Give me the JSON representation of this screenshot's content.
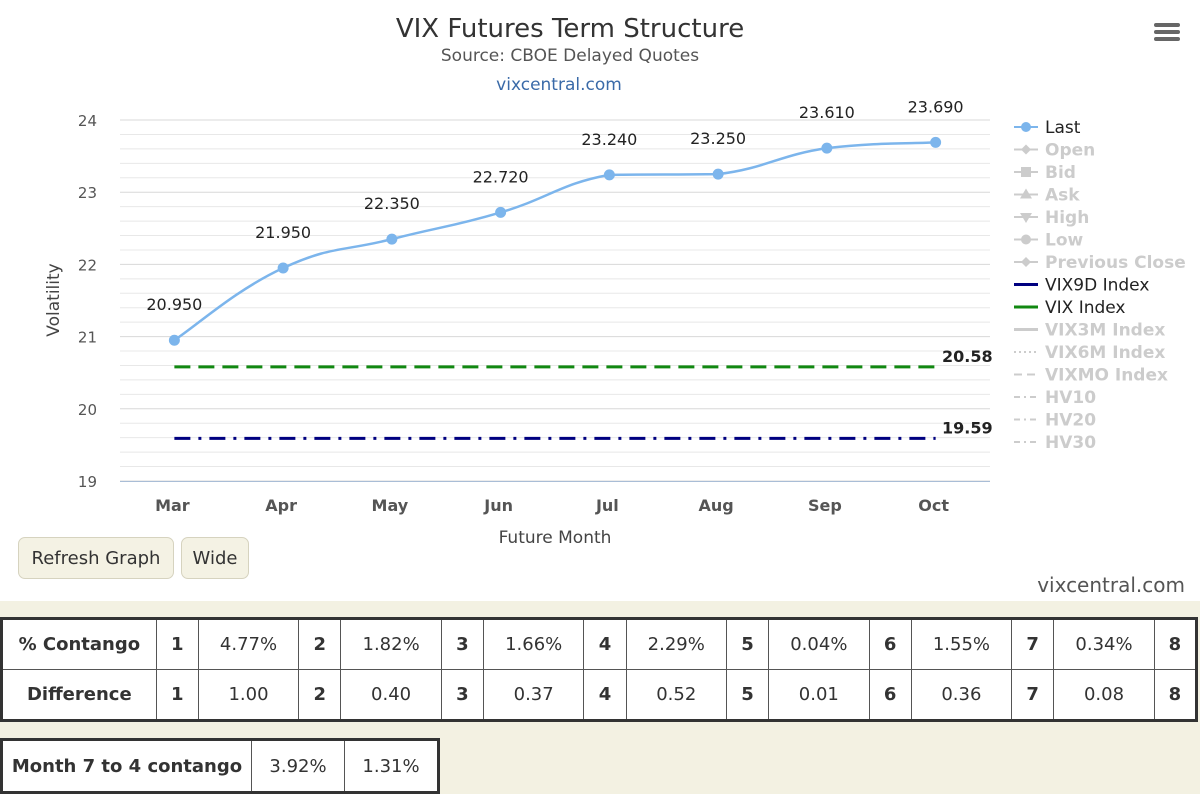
{
  "chart_data": {
    "type": "line",
    "title": "VIX Futures Term Structure",
    "subtitle": "Source: CBOE Delayed Quotes",
    "credit_top": "vixcentral.com",
    "xlabel": "Future Month",
    "ylabel": "Volatility",
    "categories": [
      "Mar",
      "Apr",
      "May",
      "Jun",
      "Jul",
      "Aug",
      "Sep",
      "Oct"
    ],
    "ylim": [
      19,
      24
    ],
    "yticks": [
      19,
      20,
      21,
      22,
      23,
      24
    ],
    "grid": true,
    "legend_position": "right",
    "series": [
      {
        "name": "Last",
        "values": [
          20.95,
          21.95,
          22.35,
          22.72,
          23.24,
          23.25,
          23.61,
          23.69
        ],
        "labels": [
          "20.950",
          "21.950",
          "22.350",
          "22.720",
          "23.240",
          "23.250",
          "23.610",
          "23.690"
        ],
        "color": "#7cb5ec",
        "style": "smooth-markers"
      },
      {
        "name": "VIX Index",
        "value": 20.58,
        "label": "20.58",
        "color": "#118811",
        "style": "dash"
      },
      {
        "name": "VIX9D Index",
        "value": 19.59,
        "label": "19.59",
        "color": "#000080",
        "style": "dashdot"
      }
    ],
    "legend": [
      {
        "name": "Last",
        "active": true,
        "symbol": "circle",
        "color": "#7cb5ec"
      },
      {
        "name": "Open",
        "active": false,
        "symbol": "diamond"
      },
      {
        "name": "Bid",
        "active": false,
        "symbol": "square"
      },
      {
        "name": "Ask",
        "active": false,
        "symbol": "triangle"
      },
      {
        "name": "High",
        "active": false,
        "symbol": "triangle-down"
      },
      {
        "name": "Low",
        "active": false,
        "symbol": "circle"
      },
      {
        "name": "Previous Close",
        "active": false,
        "symbol": "diamond"
      },
      {
        "name": "VIX9D Index",
        "active": true,
        "symbol": "line",
        "color": "#000080"
      },
      {
        "name": "VIX Index",
        "active": true,
        "symbol": "line",
        "color": "#118811"
      },
      {
        "name": "VIX3M Index",
        "active": false,
        "symbol": "line"
      },
      {
        "name": "VIX6M Index",
        "active": false,
        "symbol": "dotted"
      },
      {
        "name": "VIXMO Index",
        "active": false,
        "symbol": "dash"
      },
      {
        "name": "HV10",
        "active": false,
        "symbol": "dashdot"
      },
      {
        "name": "HV20",
        "active": false,
        "symbol": "dashdot"
      },
      {
        "name": "HV30",
        "active": false,
        "symbol": "dashdot"
      }
    ]
  },
  "controls": {
    "refresh_label": "Refresh Graph",
    "wide_label": "Wide",
    "menu_icon": "hamburger-menu-icon"
  },
  "credit_bottom": "vixcentral.com",
  "contango_table": {
    "rows": [
      {
        "label": "% Contango",
        "cells": [
          "1",
          "4.77%",
          "2",
          "1.82%",
          "3",
          "1.66%",
          "4",
          "2.29%",
          "5",
          "0.04%",
          "6",
          "1.55%",
          "7",
          "0.34%",
          "8"
        ]
      },
      {
        "label": "Difference",
        "cells": [
          "1",
          "1.00",
          "2",
          "0.40",
          "3",
          "0.37",
          "4",
          "0.52",
          "5",
          "0.01",
          "6",
          "0.36",
          "7",
          "0.08",
          "8"
        ]
      }
    ]
  },
  "month_contango": {
    "label": "Month 7 to 4 contango",
    "values": [
      "3.92%",
      "1.31%"
    ]
  }
}
